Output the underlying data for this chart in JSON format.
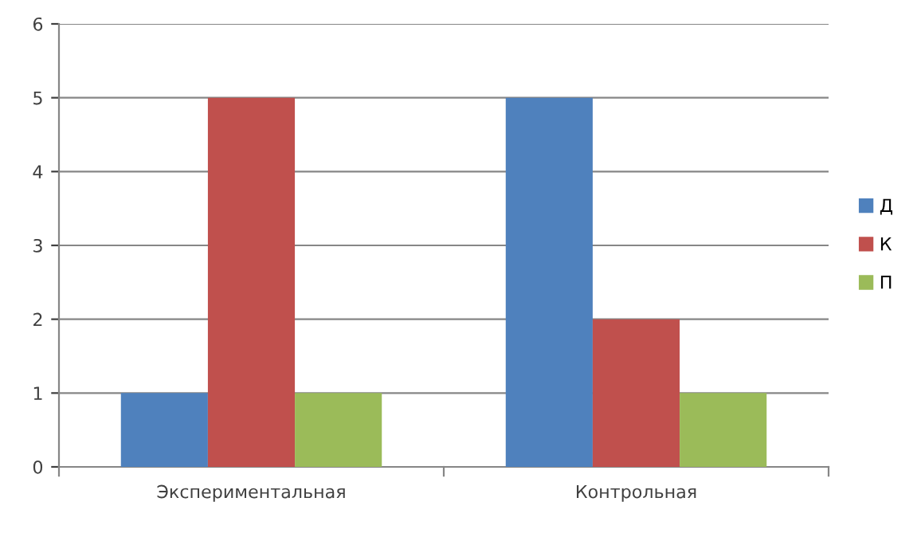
{
  "chart_data": {
    "type": "bar",
    "categories": [
      "Экспериментальная",
      "Контрольная"
    ],
    "series": [
      {
        "name": "Д",
        "color": "#4f81bd",
        "values": [
          1,
          5
        ]
      },
      {
        "name": "К",
        "color": "#c0504d",
        "values": [
          5,
          2
        ]
      },
      {
        "name": "П",
        "color": "#9bbb59",
        "values": [
          1,
          1
        ]
      }
    ],
    "ylim": [
      0,
      6
    ],
    "yticks": [
      0,
      1,
      2,
      3,
      4,
      5,
      6
    ],
    "grid": "y",
    "legend": "right"
  }
}
